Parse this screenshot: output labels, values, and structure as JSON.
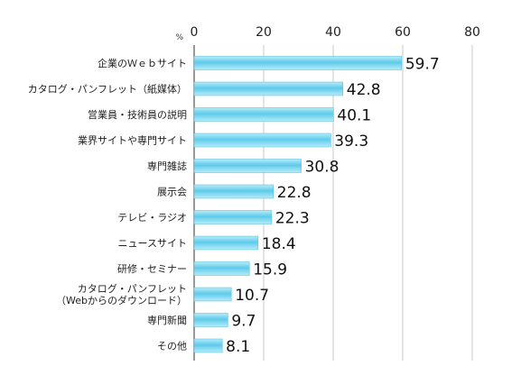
{
  "chart_data": {
    "type": "bar",
    "orientation": "horizontal",
    "categories": [
      "企業のＷｅｂサイト",
      "カタログ・パンフレット（紙媒体）",
      "営業員・技術員の説明",
      "業界サイトや専門サイト",
      "専門雑誌",
      "展示会",
      "テレビ・ラジオ",
      "ニュースサイト",
      "研修・セミナー",
      "カタログ・パンフレット\n（Webからのダウンロード）",
      "専門新聞",
      "その他"
    ],
    "values": [
      59.7,
      42.8,
      40.1,
      39.3,
      30.8,
      22.8,
      22.3,
      18.4,
      15.9,
      10.7,
      9.7,
      8.1
    ],
    "xlabel": "%",
    "xlim": [
      0,
      80
    ],
    "xticks": [
      0,
      20,
      40,
      60,
      80
    ],
    "grid": true,
    "bar_color": "#5ecbea",
    "bar_color_light": "#b8ecf9",
    "gridline_color": "#c8c8c8",
    "axis_color": "#555555"
  }
}
